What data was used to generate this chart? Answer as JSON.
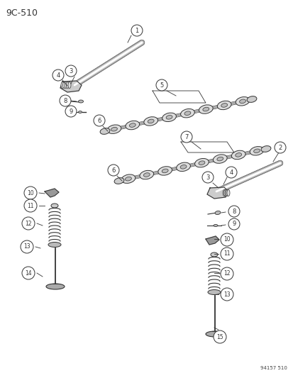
{
  "title": "9C-510",
  "footer": "94157 510",
  "bg_color": "#ffffff",
  "fig_width": 4.14,
  "fig_height": 5.33,
  "dpi": 100,
  "lc": "#333333"
}
